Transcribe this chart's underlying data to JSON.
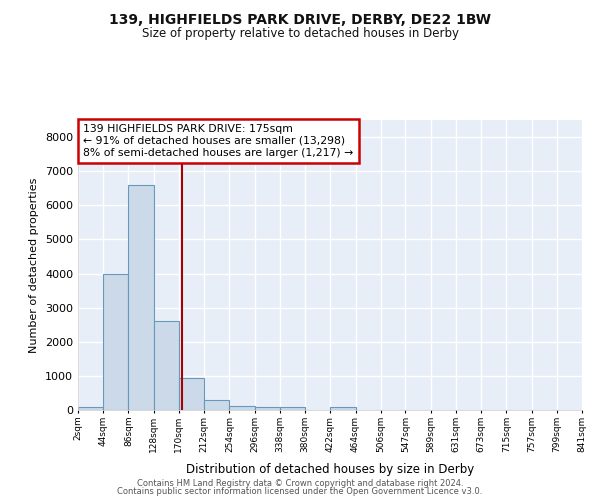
{
  "title1": "139, HIGHFIELDS PARK DRIVE, DERBY, DE22 1BW",
  "title2": "Size of property relative to detached houses in Derby",
  "xlabel": "Distribution of detached houses by size in Derby",
  "ylabel": "Number of detached properties",
  "bar_color": "#ccd9e8",
  "bar_edge_color": "#6699bb",
  "background_color": "#e8eef8",
  "grid_color": "#ffffff",
  "annotation_line1": "139 HIGHFIELDS PARK DRIVE: 175sqm",
  "annotation_line2": "← 91% of detached houses are smaller (13,298)",
  "annotation_line3": "8% of semi-detached houses are larger (1,217) →",
  "red_line_x": 175,
  "red_line_color": "#aa0000",
  "bins": [
    2,
    44,
    86,
    128,
    170,
    212,
    254,
    296,
    338,
    380,
    422,
    464,
    506,
    547,
    589,
    631,
    673,
    715,
    757,
    799,
    841
  ],
  "bin_labels": [
    "2sqm",
    "44sqm",
    "86sqm",
    "128sqm",
    "170sqm",
    "212sqm",
    "254sqm",
    "296sqm",
    "338sqm",
    "380sqm",
    "422sqm",
    "464sqm",
    "506sqm",
    "547sqm",
    "589sqm",
    "631sqm",
    "673sqm",
    "715sqm",
    "757sqm",
    "799sqm",
    "841sqm"
  ],
  "values": [
    100,
    4000,
    6600,
    2600,
    950,
    300,
    120,
    100,
    80,
    0,
    100,
    0,
    0,
    0,
    0,
    0,
    0,
    0,
    0,
    0
  ],
  "ylim": [
    0,
    8500
  ],
  "yticks": [
    0,
    1000,
    2000,
    3000,
    4000,
    5000,
    6000,
    7000,
    8000
  ],
  "footer1": "Contains HM Land Registry data © Crown copyright and database right 2024.",
  "footer2": "Contains public sector information licensed under the Open Government Licence v3.0."
}
